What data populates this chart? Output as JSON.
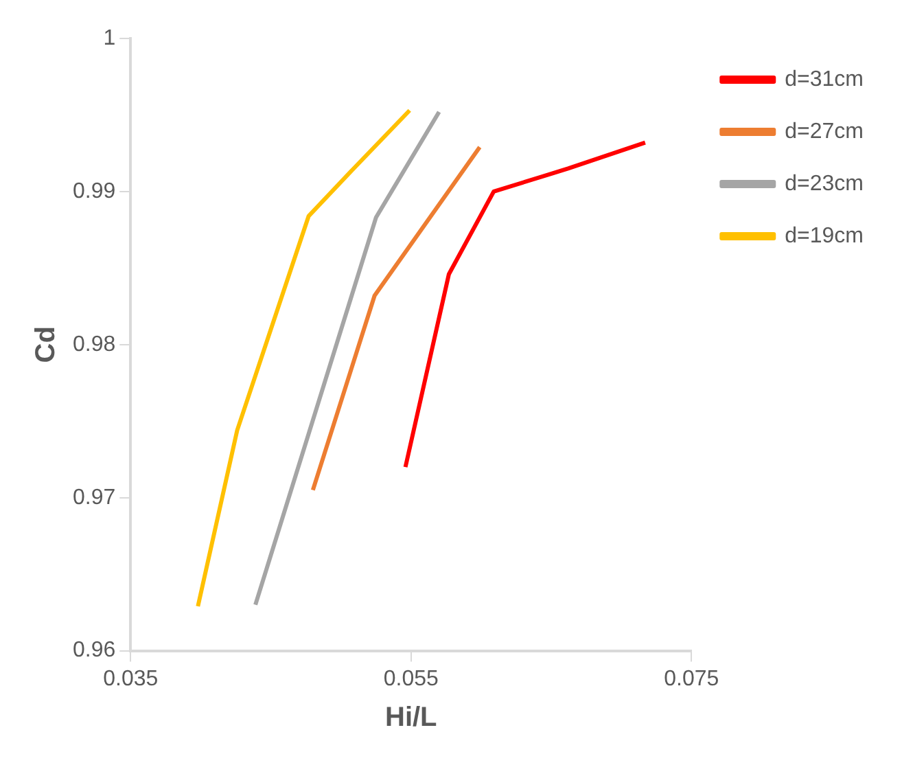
{
  "chart_data": {
    "type": "line",
    "xlabel": "Hi/L",
    "ylabel": "Cd",
    "xlim": [
      0.035,
      0.075
    ],
    "xticks": [
      0.035,
      0.055,
      0.075
    ],
    "ylim": [
      0.96,
      1
    ],
    "yticks": [
      0.96,
      0.97,
      0.98,
      0.99,
      1
    ],
    "grid": false,
    "legend": "right",
    "marker": "none",
    "line_style": "solid",
    "series": [
      {
        "name": "d=31cm",
        "color": "#ff0000",
        "x": [
          0.0546,
          0.0577,
          0.0609,
          0.0662,
          0.0717
        ],
        "values": [
          0.972,
          0.9846,
          0.99,
          0.9915,
          0.9932
        ]
      },
      {
        "name": "d=27cm",
        "color": "#ed7d31",
        "x": [
          0.048,
          0.0524,
          0.0599
        ],
        "values": [
          0.9705,
          0.9832,
          0.9929
        ]
      },
      {
        "name": "d=23cm",
        "color": "#a5a5a5",
        "x": [
          0.0439,
          0.0525,
          0.057
        ],
        "values": [
          0.963,
          0.9883,
          0.9952
        ]
      },
      {
        "name": "d=19cm",
        "color": "#ffc000",
        "x": [
          0.0398,
          0.0426,
          0.0477,
          0.0508,
          0.0549
        ],
        "values": [
          0.9629,
          0.9744,
          0.9884,
          0.9914,
          0.9953
        ]
      }
    ]
  }
}
